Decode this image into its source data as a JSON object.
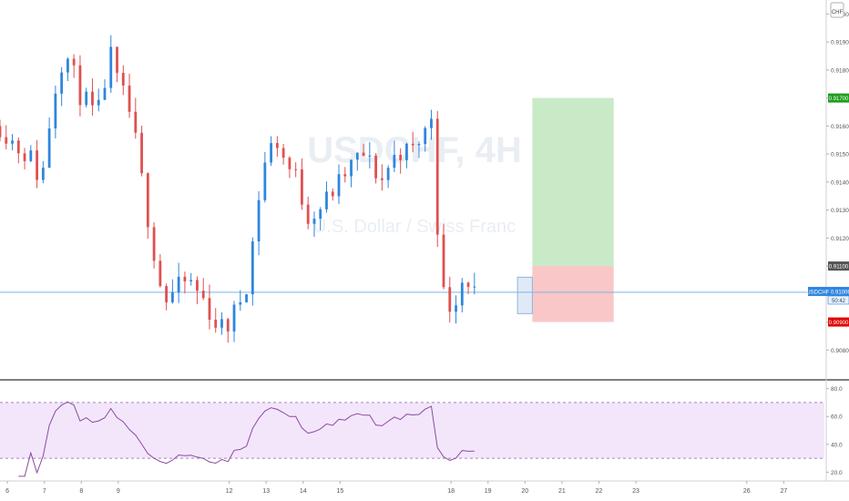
{
  "watermark": {
    "symbol": "USDCHF, 4H",
    "sub": "U.S. Dollar / Swiss Franc"
  },
  "header": {
    "currency": "CHF"
  },
  "chart_data": [
    {
      "type": "candlestick",
      "symbol": "USDCHF",
      "price_axis": {
        "min": 0.907,
        "max": 0.9205,
        "ticks": [
          "0.92000",
          "0.91900",
          "0.91800",
          "0.91700",
          "0.91600",
          "0.91500",
          "0.91400",
          "0.91300",
          "0.91200",
          "0.91100",
          "0.91000",
          "0.90900",
          "0.90800"
        ]
      },
      "time_axis": {
        "min": 5.8,
        "max": 28.1,
        "ticks": [
          "6",
          "7",
          "8",
          "9",
          "12",
          "13",
          "14",
          "15",
          "18",
          "19",
          "20",
          "21",
          "22",
          "23",
          "26",
          "27"
        ],
        "tick_days": [
          6,
          7,
          8,
          9,
          12,
          13,
          14,
          15,
          18,
          19,
          20,
          21,
          22,
          23,
          26,
          27
        ]
      },
      "price_labels": [
        {
          "value": 0.917,
          "text": "0.91700",
          "color": "#1e9e1e"
        },
        {
          "value": 0.911,
          "text": "0.91100",
          "color": "#555555"
        },
        {
          "value": 0.91006,
          "text": "0.91006",
          "symbol": "USDCHF",
          "countdown": "50:42",
          "color": "#2e86de"
        },
        {
          "value": 0.909,
          "text": "0.90900",
          "color": "#e00000"
        }
      ],
      "current_price": 0.91006,
      "position": {
        "x_start": 20.2,
        "x_end": 22.4,
        "entry": 0.911,
        "target": 0.917,
        "stop": 0.909
      },
      "range_box": {
        "x_start": 19.8,
        "x_end": 20.2,
        "top": 0.9106,
        "bottom": 0.9093
      },
      "up_color": "#2e86de",
      "down_color": "#e05050",
      "price_waypoints": [
        [
          5.8,
          0.916
        ],
        [
          6.3,
          0.9152
        ],
        [
          6.7,
          0.9148
        ],
        [
          6.9,
          0.9138
        ],
        [
          7.1,
          0.9158
        ],
        [
          7.4,
          0.9182
        ],
        [
          7.6,
          0.9185
        ],
        [
          7.8,
          0.9178
        ],
        [
          8.0,
          0.917
        ],
        [
          8.2,
          0.9168
        ],
        [
          8.4,
          0.9162
        ],
        [
          8.6,
          0.9172
        ],
        [
          8.75,
          0.9188
        ],
        [
          8.9,
          0.9178
        ],
        [
          9.1,
          0.9172
        ],
        [
          9.3,
          0.9165
        ],
        [
          9.5,
          0.9152
        ],
        [
          9.7,
          0.9135
        ],
        [
          9.9,
          0.912
        ],
        [
          10.1,
          0.9105
        ],
        [
          10.3,
          0.9098
        ],
        [
          10.6,
          0.9102
        ],
        [
          10.9,
          0.9105
        ],
        [
          11.3,
          0.9098
        ],
        [
          11.6,
          0.909
        ],
        [
          11.9,
          0.9087
        ],
        [
          12.2,
          0.9095
        ],
        [
          12.5,
          0.9105
        ],
        [
          12.7,
          0.9125
        ],
        [
          12.85,
          0.914
        ],
        [
          13.05,
          0.9152
        ],
        [
          13.3,
          0.9154
        ],
        [
          13.6,
          0.9145
        ],
        [
          13.8,
          0.9142
        ],
        [
          14.1,
          0.9128
        ],
        [
          14.4,
          0.913
        ],
        [
          14.7,
          0.9135
        ],
        [
          15.0,
          0.914
        ],
        [
          15.3,
          0.9146
        ],
        [
          15.6,
          0.915
        ],
        [
          15.9,
          0.9145
        ],
        [
          16.1,
          0.914
        ],
        [
          16.4,
          0.9148
        ],
        [
          16.7,
          0.9152
        ],
        [
          16.9,
          0.915
        ],
        [
          17.3,
          0.9158
        ],
        [
          17.5,
          0.9165
        ],
        [
          17.7,
          0.9105
        ],
        [
          17.9,
          0.9095
        ],
        [
          18.1,
          0.9098
        ],
        [
          18.3,
          0.9105
        ],
        [
          18.5,
          0.9105
        ],
        [
          18.7,
          0.9098
        ]
      ],
      "rsi": {
        "levels": [
          80,
          60,
          40,
          20
        ],
        "range": [
          15,
          85
        ],
        "overbought": 70,
        "oversold": 30,
        "line_color": "#8a4aa0",
        "band_color": "#f3e6fb"
      }
    }
  ]
}
